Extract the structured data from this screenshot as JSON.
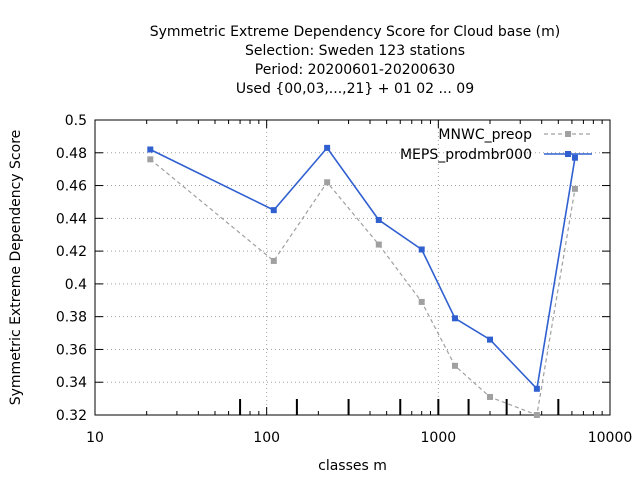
{
  "chart_data": {
    "type": "line",
    "title_lines": [
      "Symmetric Extreme Dependency Score  for Cloud base (m)",
      "Selection: Sweden    123 stations",
      "Period: 20200601-20200630",
      "Used {00,03,...,21} + 01 02 ... 09"
    ],
    "xlabel": "classes m",
    "ylabel": "Symmetric Extreme Dependency Score",
    "x_scale": "log",
    "xlim": [
      10,
      10000
    ],
    "ylim": [
      0.32,
      0.5
    ],
    "x_ticks": [
      10,
      100,
      1000,
      10000
    ],
    "x_tick_labels": [
      "10",
      "100",
      "1000",
      "10000"
    ],
    "y_ticks": [
      0.32,
      0.34,
      0.36,
      0.38,
      0.4,
      0.42,
      0.44,
      0.46,
      0.48,
      0.5
    ],
    "y_tick_labels": [
      "0.32",
      "0.34",
      "0.36",
      "0.38",
      "0.4",
      "0.42",
      "0.44",
      "0.46",
      "0.48",
      "0.5"
    ],
    "grid": true,
    "legend_position": "top-right",
    "class_marks_x": [
      70,
      150,
      300,
      600,
      1000,
      1500,
      2500,
      5000
    ],
    "series": [
      {
        "name": "MNWC_preop",
        "color": "#a0a0a0",
        "dash": true,
        "x": [
          21,
          110,
          225,
          450,
          800,
          1250,
          2000,
          3750,
          6250
        ],
        "values": [
          0.476,
          0.414,
          0.462,
          0.424,
          0.389,
          0.35,
          0.331,
          0.32,
          0.458
        ]
      },
      {
        "name": "MEPS_prodmbr000",
        "color": "#3060d0",
        "dash": false,
        "x": [
          21,
          110,
          225,
          450,
          800,
          1250,
          2000,
          3750,
          6250
        ],
        "values": [
          0.482,
          0.445,
          0.483,
          0.439,
          0.421,
          0.379,
          0.366,
          0.336,
          0.477
        ]
      }
    ]
  }
}
